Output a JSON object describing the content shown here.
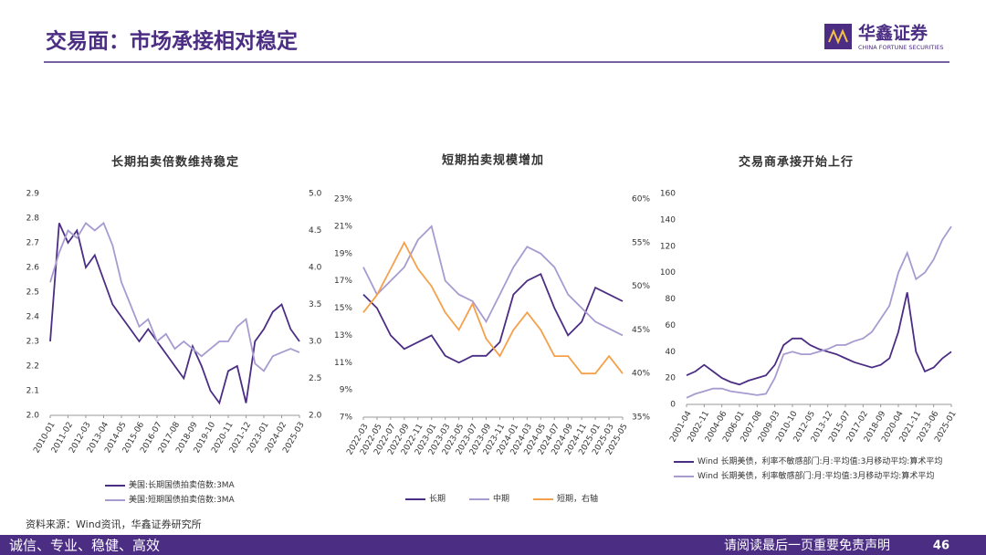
{
  "header": {
    "title": "交易面：市场承接相对稳定",
    "logo_name": "华鑫证券",
    "logo_sub": "CHINA FORTUNE SECURITIES"
  },
  "source": "资料来源：Wind资讯，华鑫证券研究所",
  "footer": {
    "slogan": "诚信、专业、稳健、高效",
    "disclaimer": "请阅读最后一页重要免责声明",
    "page": "46"
  },
  "chart_data": [
    {
      "type": "line",
      "title": "长期拍卖倍数维持稳定",
      "categories": [
        "2010-01",
        null,
        "2011-02",
        null,
        "2012-03",
        null,
        "2013-04",
        null,
        "2014-05",
        null,
        "2015-06",
        null,
        "2016-07",
        null,
        "2017-08",
        null,
        "2018-09",
        null,
        "2019-10",
        null,
        "2020-11",
        null,
        "2021-12",
        null,
        "2023-01",
        null,
        "2024-02",
        null,
        "2025-03"
      ],
      "ylim": [
        2.0,
        2.9
      ],
      "yticks": [
        {
          "value": 2.0,
          "label": "2.0"
        },
        2.1,
        2.2,
        2.3,
        2.4,
        2.5,
        2.6,
        2.7,
        2.8,
        2.9
      ],
      "y2lim": [
        2.0,
        5.0
      ],
      "y2ticks": [
        {
          "value": 2.0,
          "label": "2.0"
        },
        2.5,
        {
          "value": 3.0,
          "label": "3.0"
        },
        3.5,
        {
          "value": 4.0,
          "label": "4.0"
        },
        4.5,
        {
          "value": 5.0,
          "label": "5.0"
        }
      ],
      "legend": "bottom",
      "series": [
        {
          "name": "美国:长期国债拍卖倍数:3MA",
          "color": "#4b2d83",
          "values": [
            2.3,
            2.78,
            2.7,
            2.75,
            2.6,
            2.65,
            2.55,
            2.45,
            2.4,
            2.35,
            2.3,
            2.35,
            2.3,
            2.25,
            2.2,
            2.15,
            2.28,
            2.2,
            2.1,
            2.05,
            2.18,
            2.2,
            2.05,
            2.3,
            2.35,
            2.42,
            2.45,
            2.35,
            2.3
          ]
        },
        {
          "name": "美国:短期国债拍卖倍数:3MA",
          "color": "#a79bd0",
          "axis": "y2",
          "values": [
            3.8,
            4.2,
            4.5,
            4.4,
            4.6,
            4.5,
            4.6,
            4.3,
            3.8,
            3.5,
            3.2,
            3.3,
            3.0,
            3.1,
            2.9,
            3.0,
            2.9,
            2.8,
            2.9,
            3.0,
            3.0,
            3.2,
            3.3,
            2.7,
            2.6,
            2.8,
            2.85,
            2.9,
            2.85
          ]
        }
      ]
    },
    {
      "type": "line",
      "title": "短期拍卖规模增加",
      "categories": [
        "2022-03",
        "2022-05",
        "2022-07",
        "2022-09",
        "2022-11",
        "2023-01",
        "2023-03",
        "2023-05",
        "2023-07",
        "2023-09",
        "2023-11",
        "2024-01",
        "2024-03",
        "2024-05",
        "2024-07",
        "2024-09",
        "2024-11",
        "2025-01",
        "2025-03",
        "2025-05"
      ],
      "ylim": [
        7,
        23
      ],
      "yticks": [
        {
          "value": 7,
          "label": "7%"
        },
        {
          "value": 9,
          "label": "9%"
        },
        {
          "value": 11,
          "label": "11%"
        },
        {
          "value": 13,
          "label": "13%"
        },
        {
          "value": 15,
          "label": "15%"
        },
        {
          "value": 17,
          "label": "17%"
        },
        {
          "value": 19,
          "label": "19%"
        },
        {
          "value": 21,
          "label": "21%"
        },
        {
          "value": 23,
          "label": "23%"
        }
      ],
      "y2lim": [
        35,
        60
      ],
      "y2ticks": [
        {
          "value": 35,
          "label": "35%"
        },
        {
          "value": 40,
          "label": "40%"
        },
        {
          "value": 45,
          "label": "45%"
        },
        {
          "value": 50,
          "label": "50%"
        },
        {
          "value": 55,
          "label": "55%"
        },
        {
          "value": 60,
          "label": "60%"
        }
      ],
      "legend": "bottom",
      "series": [
        {
          "name": "长期",
          "color": "#4b2d83",
          "values": [
            16,
            15,
            13,
            12,
            12.5,
            13,
            11.5,
            11,
            11.5,
            11.5,
            12.5,
            16,
            17,
            17.5,
            15,
            13,
            14,
            16.5,
            16,
            15.5
          ]
        },
        {
          "name": "中期",
          "color": "#a79bd0",
          "values": [
            18,
            16,
            17,
            18,
            20,
            21,
            17,
            16,
            15.5,
            14,
            16,
            18,
            19.5,
            19,
            18,
            16,
            15,
            14,
            13.5,
            13
          ]
        },
        {
          "name": "短期，右轴",
          "color": "#f5a04a",
          "axis": "y2",
          "values": [
            47,
            49,
            52,
            55,
            52,
            50,
            47,
            45,
            48,
            44,
            42,
            45,
            47,
            45,
            42,
            42,
            40,
            40,
            42,
            40
          ]
        }
      ]
    },
    {
      "type": "line",
      "title": "交易商承接开始上行",
      "categories": [
        "2001-04",
        null,
        "2002-11",
        null,
        "2004-06",
        null,
        "2006-01",
        null,
        "2007-08",
        null,
        "2009-03",
        null,
        "2010-10",
        null,
        "2012-05",
        null,
        "2013-12",
        null,
        "2015-07",
        null,
        "2017-02",
        null,
        "2018-09",
        null,
        "2020-04",
        null,
        "2021-11",
        null,
        "2023-06",
        null,
        "2025-01"
      ],
      "ylim": [
        0,
        160
      ],
      "yticks": [
        0,
        20,
        40,
        60,
        80,
        100,
        120,
        140,
        160
      ],
      "legend": "bottom",
      "series": [
        {
          "name": "Wind 长期美债，利率不敏感部门:月:平均值:3月移动平均:算术平均",
          "color": "#4b2d83",
          "values": [
            22,
            25,
            30,
            25,
            20,
            17,
            15,
            18,
            20,
            22,
            30,
            45,
            50,
            50,
            45,
            42,
            40,
            38,
            35,
            32,
            30,
            28,
            30,
            35,
            55,
            85,
            40,
            25,
            28,
            35,
            40
          ]
        },
        {
          "name": "Wind 长期美债，利率敏感部门:月:平均值:3月移动平均:算术平均",
          "color": "#a79bd0",
          "values": [
            5,
            8,
            10,
            12,
            12,
            10,
            9,
            8,
            7,
            8,
            20,
            38,
            40,
            38,
            38,
            40,
            42,
            45,
            45,
            48,
            50,
            55,
            65,
            75,
            100,
            115,
            95,
            100,
            110,
            125,
            135
          ]
        }
      ]
    }
  ]
}
